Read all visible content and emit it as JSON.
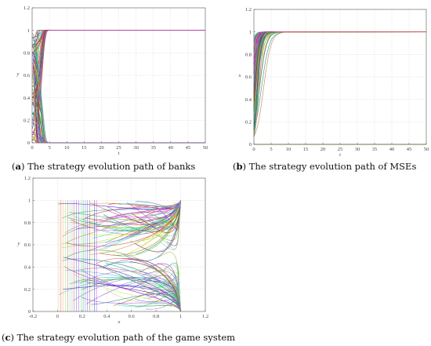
{
  "chart_data": [
    {
      "type": "line",
      "panel_label": "a",
      "caption": "The strategy evolution path of banks",
      "xlabel": "t",
      "ylabel": "y",
      "xlim": [
        0,
        50
      ],
      "ylim": [
        0,
        1.2
      ],
      "xticks": [
        "0",
        "5",
        "10",
        "15",
        "20",
        "25",
        "30",
        "35",
        "40",
        "45",
        "50"
      ],
      "yticks": [
        "0",
        "0.2",
        "0.4",
        "0.6",
        "0.8",
        "1",
        "1.2"
      ],
      "grid": true,
      "series_description": "Many trajectories start between 0 and 1 and converge sharply to either 0 or 1 by about t = 5, then stay flat to t = 50",
      "convergence_values": [
        0,
        1
      ],
      "convergence_time": 5
    },
    {
      "type": "line",
      "panel_label": "b",
      "caption": "The strategy evolution path of MSEs",
      "xlabel": "t",
      "ylabel": "x",
      "xlim": [
        0,
        50
      ],
      "ylim": [
        0,
        1.2
      ],
      "xticks": [
        "0",
        "5",
        "10",
        "15",
        "20",
        "25",
        "30",
        "35",
        "40",
        "45",
        "50"
      ],
      "yticks": [
        "0",
        "0.2",
        "0.4",
        "0.6",
        "0.8",
        "1",
        "1.2"
      ],
      "grid": true,
      "series_description": "Trajectories start between 0 and 1 and rise smoothly to 1 by about t = 6; one path stays at 0",
      "convergence_values": [
        0,
        1
      ],
      "convergence_time": 6
    },
    {
      "type": "line",
      "panel_label": "c",
      "caption": "The strategy evolution path of the game system",
      "xlabel": "x",
      "ylabel": "y",
      "xlim": [
        -0.2,
        1.2
      ],
      "ylim": [
        0,
        1.2
      ],
      "xticks": [
        "-0.2",
        "0",
        "0.2",
        "0.4",
        "0.6",
        "0.8",
        "1",
        "1.2"
      ],
      "yticks": [
        "0",
        "0.2",
        "0.4",
        "0.6",
        "0.8",
        "1",
        "1.2"
      ],
      "grid": true,
      "series_description": "Phase-plane paths in the unit square drift toward x = 1 and converge to the corners (1, 0) and (1, 1)",
      "region": [
        [
          0,
          1
        ],
        [
          0,
          1
        ]
      ]
    }
  ]
}
